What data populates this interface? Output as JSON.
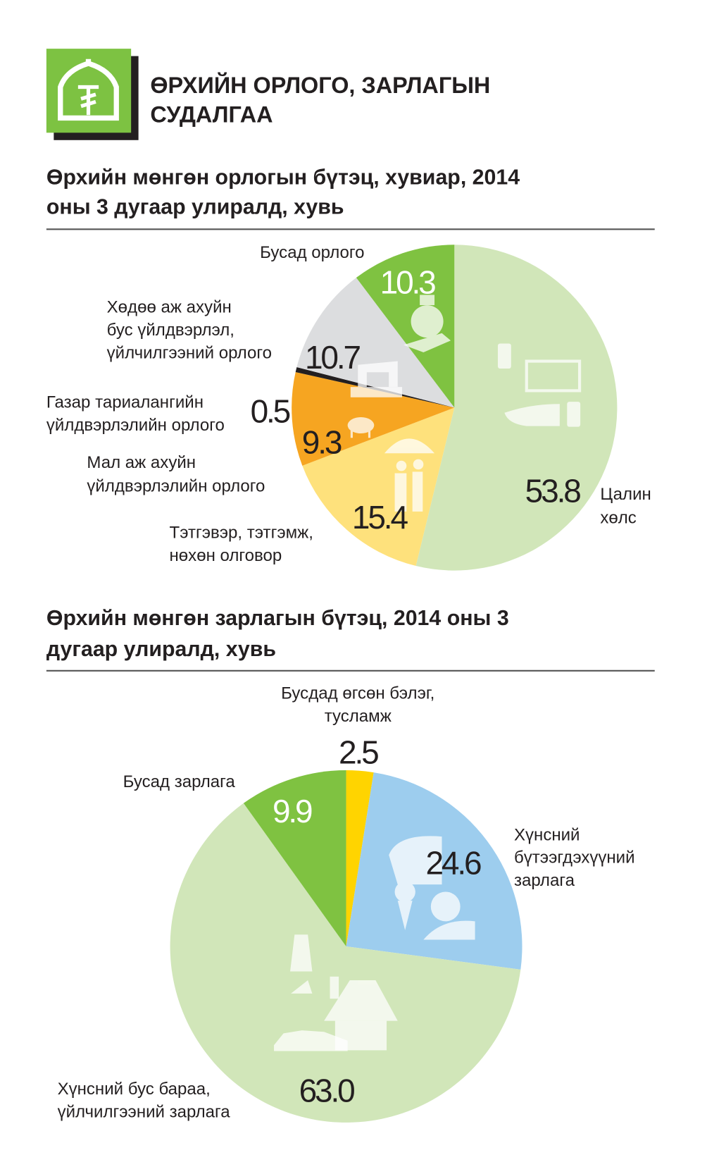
{
  "header": {
    "title_line1": "ӨРХИЙН ОРЛОГО, ЗАРЛАГЫН",
    "title_line2": "СУДАЛГАА",
    "logo_icon": "yurt-tugrik-icon",
    "logo_color": "#7dc242"
  },
  "chart_data": [
    {
      "type": "pie",
      "title_line1": "Өрхийн мөнгөн орлогын бүтэц, хувиар, 2014",
      "title_line2": "оны 3 дугаар улиралд, хувь",
      "categories": [
        "Цалин хөлс",
        "Тэтгэвэр, тэтгэмж, нөхөн олговор",
        "Мал аж ахуйн үйлдвэрлэлийн орлого",
        "Газар тариалангийн үйлдвэрлэлийн орлого",
        "Хөдөө аж ахуйн бус үйлдвэрлэл, үйлчилгээний орлого",
        "Бусад орлого"
      ],
      "values": [
        53.8,
        15.4,
        9.3,
        0.5,
        10.7,
        10.3
      ],
      "value_labels": [
        "53.8",
        "15.4",
        "9.3",
        "0.5",
        "10.7",
        "10.3"
      ],
      "colors": [
        "#d1e6b9",
        "#fee17c",
        "#f6a521",
        "#231f20",
        "#dcdddf",
        "#7fc241"
      ],
      "labels": {
        "wage": [
          "Цалин",
          "хөлс"
        ],
        "pension": [
          "Тэтгэвэр, тэтгэмж,",
          "нөхөн олговор"
        ],
        "livestock": [
          "Мал аж ахуйн",
          "үйлдвэрлэлийн орлого"
        ],
        "crop": [
          "Газар тариалангийн",
          "үйлдвэрлэлийн орлого"
        ],
        "nonagri": [
          "Хөдөө аж ахуйн",
          "бус үйлдвэрлэл,",
          "үйлчилгээний орлого"
        ],
        "other": [
          "Бусад орлого"
        ]
      }
    },
    {
      "type": "pie",
      "title_line1": "Өрхийн мөнгөн зарлагын бүтэц, 2014 оны 3",
      "title_line2": "дугаар улиралд, хувь",
      "categories": [
        "Бусдад өгсөн бэлэг, тусламж",
        "Хүнсний бүтээгдэхүүний зарлага",
        "Хүнсний бус бараа, үйлчилгээний зарлага",
        "Бусад зарлага"
      ],
      "values": [
        2.5,
        24.6,
        63.0,
        9.9
      ],
      "value_labels": [
        "2.5",
        "24.6",
        "63.0",
        "9.9"
      ],
      "colors": [
        "#ffd400",
        "#9dcdee",
        "#d1e6b9",
        "#7fc241"
      ],
      "labels": {
        "gift": [
          "Бусдад өгсөн бэлэг,",
          "тусламж"
        ],
        "food": [
          "Хүнсний",
          "бүтээгдэхүүний",
          "зарлага"
        ],
        "nonfood": [
          "Хүнсний бус бараа,",
          "үйлчилгээний зарлага"
        ],
        "other": [
          "Бусад зарлага"
        ]
      }
    }
  ]
}
